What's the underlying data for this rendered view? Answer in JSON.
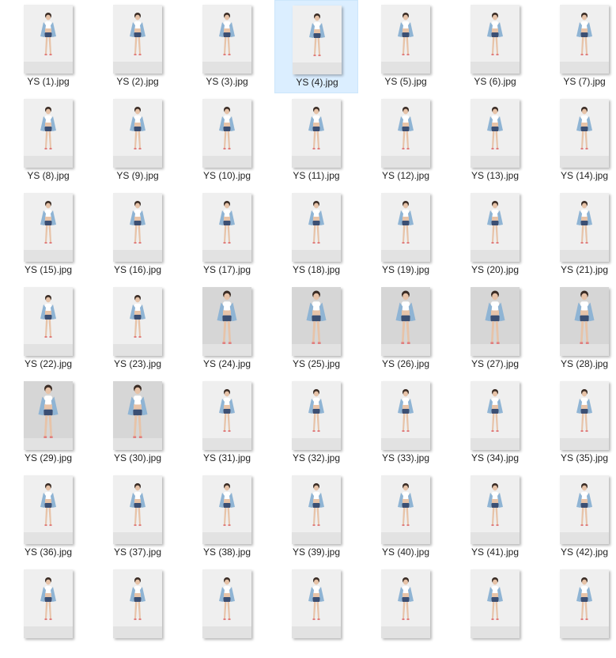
{
  "files": [
    "YS (1).jpg",
    "YS (2).jpg",
    "YS (3).jpg",
    "YS (4).jpg",
    "YS (5).jpg",
    "YS (6).jpg",
    "YS (7).jpg",
    "YS (8).jpg",
    "YS (9).jpg",
    "YS (10).jpg",
    "YS (11).jpg",
    "YS (12).jpg",
    "YS (13).jpg",
    "YS (14).jpg",
    "YS (15).jpg",
    "YS (16).jpg",
    "YS (17).jpg",
    "YS (18).jpg",
    "YS (19).jpg",
    "YS (20).jpg",
    "YS (21).jpg",
    "YS (22).jpg",
    "YS (23).jpg",
    "YS (24).jpg",
    "YS (25).jpg",
    "YS (26).jpg",
    "YS (27).jpg",
    "YS (28).jpg",
    "YS (29).jpg",
    "YS (30).jpg",
    "YS (31).jpg",
    "YS (32).jpg",
    "YS (33).jpg",
    "YS (34).jpg",
    "YS (35).jpg",
    "YS (36).jpg",
    "YS (37).jpg",
    "YS (38).jpg",
    "YS (39).jpg",
    "YS (40).jpg",
    "YS (41).jpg",
    "YS (42).jpg",
    "",
    "",
    "",
    "",
    "",
    "",
    ""
  ],
  "selected_file": "YS (4).jpg",
  "colors": {
    "selection_background": "#dbeeff",
    "label_text": "#1e1e1e",
    "photo_backdrop": "#eeeeee",
    "shirt_denim": "#8fb4d4",
    "shorts_denim": "#3b4f73"
  },
  "thumbnail_icon": "photo-thumbnail"
}
